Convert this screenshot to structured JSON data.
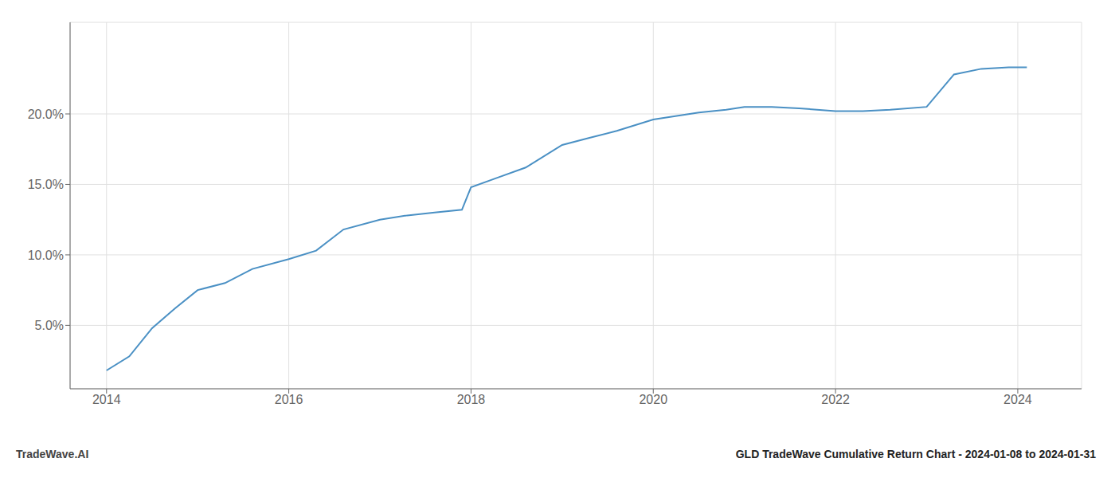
{
  "chart_data": {
    "type": "line",
    "title": "GLD TradeWave Cumulative Return Chart - 2024-01-08 to 2024-01-31",
    "annotations": [
      "TradeWave.AI"
    ],
    "x": [
      2014.0,
      2014.25,
      2014.5,
      2014.75,
      2015.0,
      2015.3,
      2015.6,
      2016.0,
      2016.3,
      2016.6,
      2017.0,
      2017.3,
      2017.6,
      2017.9,
      2018.0,
      2018.3,
      2018.6,
      2019.0,
      2019.3,
      2019.6,
      2020.0,
      2020.3,
      2020.5,
      2020.8,
      2021.0,
      2021.3,
      2021.6,
      2022.0,
      2022.3,
      2022.6,
      2023.0,
      2023.3,
      2023.6,
      2023.9,
      2024.0,
      2024.1
    ],
    "values": [
      0.018,
      0.028,
      0.048,
      0.062,
      0.075,
      0.08,
      0.09,
      0.097,
      0.103,
      0.118,
      0.125,
      0.128,
      0.13,
      0.132,
      0.148,
      0.155,
      0.162,
      0.178,
      0.183,
      0.188,
      0.196,
      0.199,
      0.201,
      0.203,
      0.205,
      0.205,
      0.204,
      0.202,
      0.202,
      0.203,
      0.205,
      0.228,
      0.232,
      0.233,
      0.233,
      0.233
    ],
    "color": "#4a90c4",
    "xlim": [
      2013.6,
      2024.7
    ],
    "xticks": [
      2014,
      2016,
      2018,
      2020,
      2022,
      2024
    ],
    "ylim": [
      0.005,
      0.265
    ],
    "yticks": [
      {
        "value": 0.05,
        "label": "5.0%"
      },
      {
        "value": 0.1,
        "label": "10.0%"
      },
      {
        "value": 0.15,
        "label": "15.0%"
      },
      {
        "value": 0.2,
        "label": "20.0%"
      }
    ],
    "grid": true
  }
}
